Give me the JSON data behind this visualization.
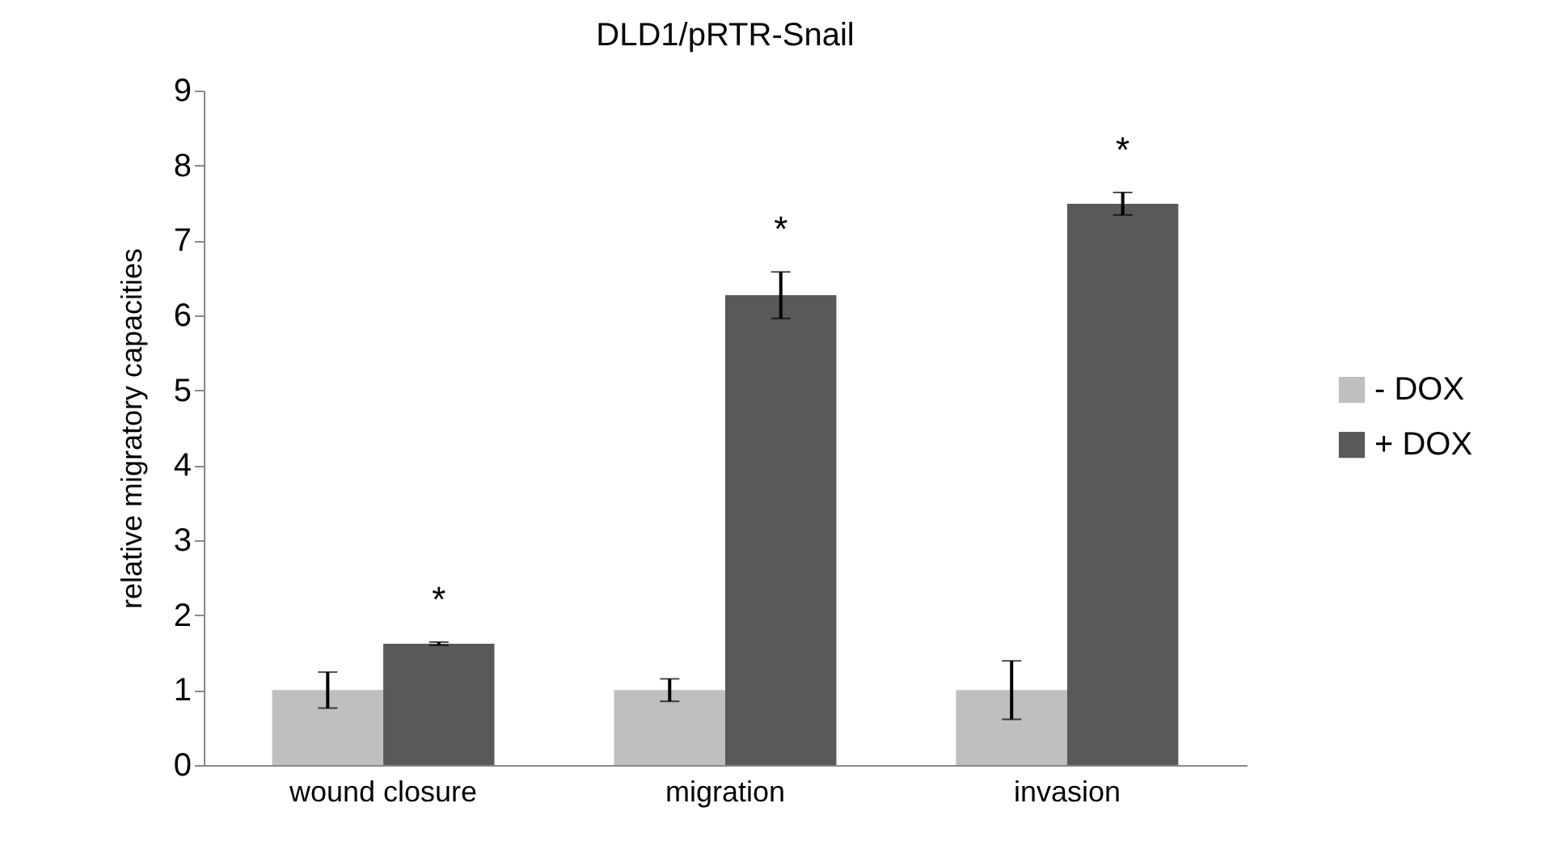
{
  "chart_data": {
    "type": "bar",
    "title": "DLD1/pRTR-Snail",
    "ylabel": "relative migratory capacities",
    "categories": [
      "wound closure",
      "migration",
      "invasion"
    ],
    "series": [
      {
        "name": "- DOX",
        "color": "#bfbfbf",
        "values": [
          1,
          1,
          1
        ],
        "errors": [
          0.24,
          0.15,
          0.39
        ]
      },
      {
        "name": "+ DOX",
        "color": "#595959",
        "values": [
          1.62,
          6.27,
          7.49
        ],
        "errors": [
          0.02,
          0.31,
          0.15
        ]
      }
    ],
    "ylim": [
      0,
      9
    ],
    "yticks": [
      0,
      1,
      2,
      3,
      4,
      5,
      6,
      7,
      8,
      9
    ],
    "grid": false,
    "legend": "right",
    "annotations": [
      "*",
      "*",
      "*"
    ]
  }
}
